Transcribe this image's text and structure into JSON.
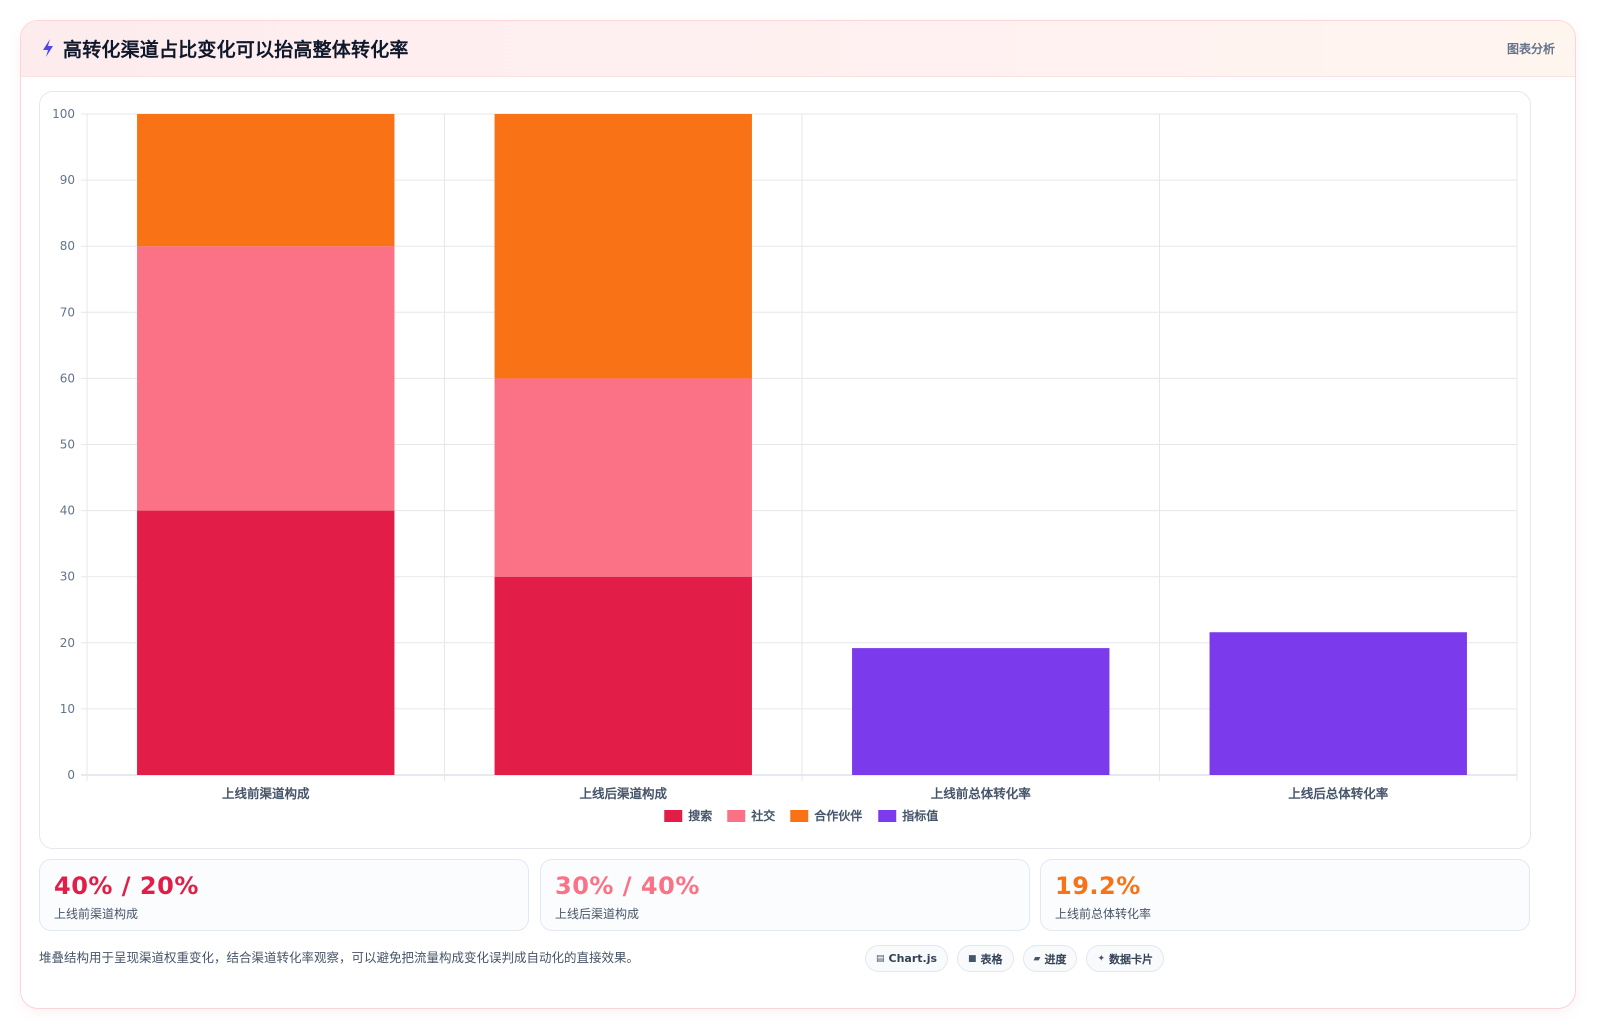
{
  "header": {
    "title": "高转化渠道占比变化可以抬高整体转化率",
    "meta": "图表分析",
    "icon": "lightning-bolt-icon"
  },
  "chart_data": {
    "type": "bar",
    "stacked": true,
    "categories": [
      "上线前渠道构成",
      "上线后渠道构成",
      "上线前总体转化率",
      "上线后总体转化率"
    ],
    "series": [
      {
        "name": "搜索",
        "color": "#e11d48",
        "values": [
          40,
          30,
          null,
          null
        ]
      },
      {
        "name": "社交",
        "color": "#fb7185",
        "values": [
          40,
          30,
          null,
          null
        ]
      },
      {
        "name": "合作伙伴",
        "color": "#f97316",
        "values": [
          20,
          40,
          null,
          null
        ]
      },
      {
        "name": "指标值",
        "color": "#7c3aed",
        "values": [
          null,
          null,
          19.2,
          21.6
        ]
      }
    ],
    "ylim": [
      0,
      100
    ],
    "yticks": [
      0,
      10,
      20,
      30,
      40,
      50,
      60,
      70,
      80,
      90,
      100
    ],
    "grid": true,
    "legend_position": "bottom-center"
  },
  "stats": [
    {
      "value": "40% / 20%",
      "label": "上线前渠道构成",
      "color": "#e11d48"
    },
    {
      "value": "30% / 40%",
      "label": "上线后渠道构成",
      "color": "#fb7185"
    },
    {
      "value": "19.2%",
      "label": "上线前总体转化率",
      "color": "#f97316"
    }
  ],
  "footnote": "堆叠结构用于呈现渠道权重变化，结合渠道转化率观察，可以避免把流量构成变化误判成自动化的直接效果。",
  "tags": [
    {
      "icon": "chart-icon",
      "glyph": "▤",
      "label": "Chart.js"
    },
    {
      "icon": "table-icon",
      "glyph": "■",
      "label": "表格"
    },
    {
      "icon": "progress-icon",
      "glyph": "▰",
      "label": "进度"
    },
    {
      "icon": "sparkle-icon",
      "glyph": "✦",
      "label": "数据卡片"
    }
  ]
}
